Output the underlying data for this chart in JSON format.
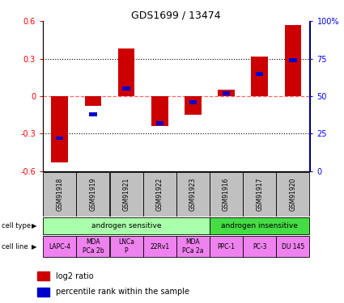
{
  "title": "GDS1699 / 13474",
  "samples": [
    "GSM91918",
    "GSM91919",
    "GSM91921",
    "GSM91922",
    "GSM91923",
    "GSM91916",
    "GSM91917",
    "GSM91920"
  ],
  "log2_ratio": [
    -0.53,
    -0.08,
    0.38,
    -0.24,
    -0.15,
    0.05,
    0.32,
    0.57
  ],
  "percentile_rank": [
    22,
    38,
    55,
    32,
    46,
    52,
    65,
    74
  ],
  "ylim": [
    -0.6,
    0.6
  ],
  "yticks_left": [
    -0.6,
    -0.3,
    0,
    0.3,
    0.6
  ],
  "yticks_right_vals": [
    -0.6,
    -0.3,
    0.0,
    0.3,
    0.6
  ],
  "yticks_right_labels": [
    "0",
    "25",
    "50",
    "75",
    "100%"
  ],
  "cell_type_groups": [
    {
      "label": "androgen sensitive",
      "start": 0,
      "end": 5,
      "color": "#aaffaa"
    },
    {
      "label": "androgen insensitive",
      "start": 5,
      "end": 8,
      "color": "#44dd44"
    }
  ],
  "cell_lines": [
    "LAPC-4",
    "MDA\nPCa 2b",
    "LNCa\nP",
    "22Rv1",
    "MDA\nPCa 2a",
    "PPC-1",
    "PC-3",
    "DU 145"
  ],
  "cell_line_color": "#EE82EE",
  "bar_color_red": "#CC0000",
  "bar_color_blue": "#0000CC",
  "sample_bg_color": "#C0C0C0",
  "zero_line_color": "#FF6666",
  "legend_red_label": "log2 ratio",
  "legend_blue_label": "percentile rank within the sample",
  "bar_width": 0.5
}
